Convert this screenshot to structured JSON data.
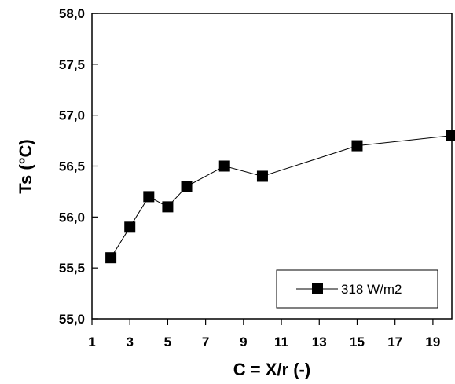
{
  "chart_data": {
    "type": "line",
    "title": "",
    "xlabel": "C = X/r (-)",
    "ylabel": "Ts (°C)",
    "xlim": [
      1,
      20
    ],
    "ylim": [
      55.0,
      58.0
    ],
    "x_ticks": [
      1,
      3,
      5,
      7,
      9,
      11,
      13,
      15,
      17,
      19
    ],
    "x_tick_labels": [
      "1",
      "3",
      "5",
      "7",
      "9",
      "11",
      "13",
      "15",
      "17",
      "19"
    ],
    "y_ticks": [
      55.0,
      55.5,
      56.0,
      56.5,
      57.0,
      57.5,
      58.0
    ],
    "y_tick_labels": [
      "55,0",
      "55,5",
      "56,0",
      "56,5",
      "57,0",
      "57,5",
      "58,0"
    ],
    "grid": false,
    "legend_position": "bottom-right",
    "series": [
      {
        "name": "318 W/m2",
        "marker": "square",
        "color": "#000000",
        "x": [
          2,
          3,
          4,
          5,
          6,
          8,
          10,
          15,
          20
        ],
        "y": [
          55.6,
          55.9,
          56.2,
          56.1,
          56.3,
          56.5,
          56.4,
          56.7,
          56.8
        ]
      }
    ]
  }
}
